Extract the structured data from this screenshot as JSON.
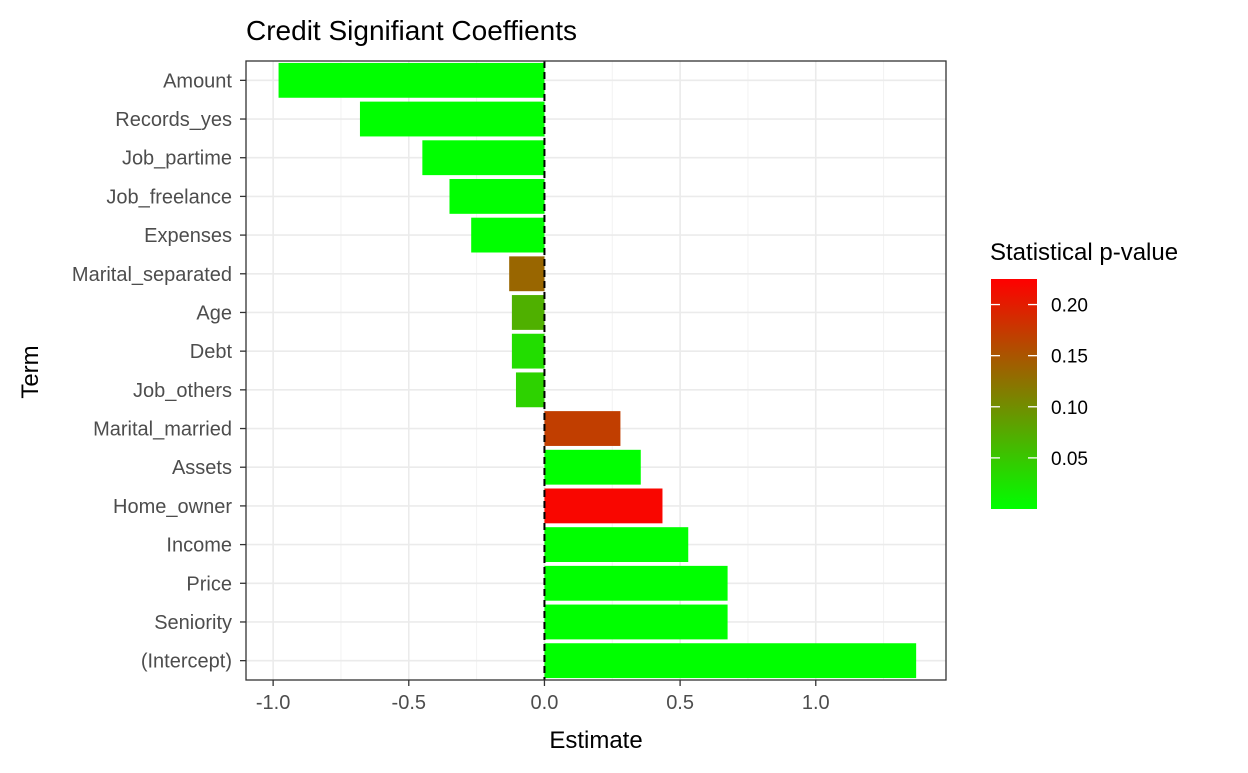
{
  "chart_data": {
    "type": "bar",
    "orientation": "horizontal",
    "title": "Credit Signifiant Coeffients",
    "xlabel": "Estimate",
    "ylabel": "Term",
    "xlim": [
      -1.1,
      1.48
    ],
    "x_ticks": [
      -1.0,
      -0.5,
      0.0,
      0.5,
      1.0
    ],
    "x_tick_labels": [
      "-1.0",
      "-0.5",
      "0.0",
      "0.5",
      "1.0"
    ],
    "reference_line": {
      "x": 0,
      "style": "dashed"
    },
    "grid": true,
    "legend": {
      "title": "Statistical p-value",
      "placement": "right",
      "type": "colorbar",
      "range": [
        0.0,
        0.225
      ],
      "color_low": "#00FF00",
      "color_high": "#FF0000",
      "ticks": [
        0.05,
        0.1,
        0.15,
        0.2
      ],
      "tick_labels": [
        "0.05",
        "0.10",
        "0.15",
        "0.20"
      ]
    },
    "bars": [
      {
        "term": "Amount",
        "estimate": -0.98,
        "p_value": 0.0
      },
      {
        "term": "Records_yes",
        "estimate": -0.68,
        "p_value": 0.0
      },
      {
        "term": "Job_partime",
        "estimate": -0.45,
        "p_value": 0.0
      },
      {
        "term": "Job_freelance",
        "estimate": -0.35,
        "p_value": 0.0
      },
      {
        "term": "Expenses",
        "estimate": -0.27,
        "p_value": 0.0
      },
      {
        "term": "Marital_separated",
        "estimate": -0.13,
        "p_value": 0.135
      },
      {
        "term": "Age",
        "estimate": -0.12,
        "p_value": 0.07
      },
      {
        "term": "Debt",
        "estimate": -0.12,
        "p_value": 0.03
      },
      {
        "term": "Job_others",
        "estimate": -0.105,
        "p_value": 0.04
      },
      {
        "term": "Marital_married",
        "estimate": 0.28,
        "p_value": 0.17
      },
      {
        "term": "Assets",
        "estimate": 0.355,
        "p_value": 0.0
      },
      {
        "term": "Home_owner",
        "estimate": 0.435,
        "p_value": 0.22
      },
      {
        "term": "Income",
        "estimate": 0.53,
        "p_value": 0.0
      },
      {
        "term": "Price",
        "estimate": 0.675,
        "p_value": 0.0
      },
      {
        "term": "Seniority",
        "estimate": 0.675,
        "p_value": 0.0
      },
      {
        "term": "(Intercept)",
        "estimate": 1.37,
        "p_value": 0.0
      }
    ]
  }
}
